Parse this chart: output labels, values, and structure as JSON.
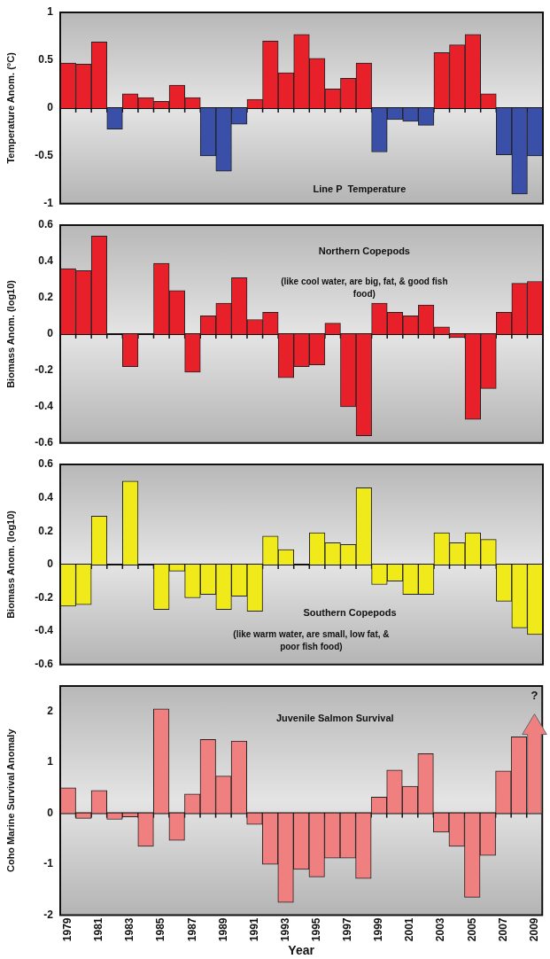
{
  "chart_data": [
    {
      "type": "bar",
      "ylabel": "Temperature Anom. (°C)",
      "annotations": [
        "Line P  Temperature"
      ],
      "categories": [
        "1979",
        null,
        "1981",
        null,
        "1983",
        null,
        "1985",
        null,
        "1987",
        null,
        "1989",
        null,
        "1991",
        null,
        "1993",
        null,
        "1995",
        null,
        "1997",
        null,
        "1999",
        null,
        "2001",
        null,
        "2003",
        null,
        "2005",
        null,
        "2007",
        null,
        "2009"
      ],
      "values": [
        0.47,
        0.46,
        0.69,
        -0.22,
        0.15,
        0.11,
        0.07,
        0.24,
        0.11,
        -0.5,
        -0.66,
        -0.17,
        0.09,
        0.7,
        0.37,
        0.77,
        0.52,
        0.2,
        0.31,
        0.47,
        -0.46,
        -0.12,
        -0.14,
        -0.18,
        0.58,
        0.66,
        0.77,
        0.15,
        -0.49,
        -0.9,
        -0.5
      ],
      "colors": [
        "#e8202a",
        "#e8202a",
        "#e8202a",
        "#3a4fa8",
        "#e8202a",
        "#e8202a",
        "#e8202a",
        "#e8202a",
        "#e8202a",
        "#3a4fa8",
        "#3a4fa8",
        "#3a4fa8",
        "#e8202a",
        "#e8202a",
        "#e8202a",
        "#e8202a",
        "#e8202a",
        "#e8202a",
        "#e8202a",
        "#e8202a",
        "#3a4fa8",
        "#3a4fa8",
        "#3a4fa8",
        "#3a4fa8",
        "#e8202a",
        "#e8202a",
        "#e8202a",
        "#e8202a",
        "#3a4fa8",
        "#3a4fa8",
        "#3a4fa8"
      ],
      "ylim": [
        -1,
        1
      ],
      "yticks": [
        -1,
        -0.5,
        0,
        0.5,
        1
      ],
      "tick_labels": "y"
    },
    {
      "type": "bar",
      "ylabel": "Biomass Anom. (log10)",
      "annotations": [
        "Northern Copepods",
        "(like cool water, are big, fat, & good fish food)"
      ],
      "categories": [
        "1979",
        null,
        "1981",
        null,
        "1983",
        null,
        "1985",
        null,
        "1987",
        null,
        "1989",
        null,
        "1991",
        null,
        "1993",
        null,
        "1995",
        null,
        "1997",
        null,
        "1999",
        null,
        "2001",
        null,
        "2003",
        null,
        "2005",
        null,
        "2007",
        null,
        "2009"
      ],
      "values": [
        0.36,
        0.35,
        0.54,
        null,
        -0.18,
        null,
        0.39,
        0.24,
        -0.21,
        0.1,
        0.17,
        0.31,
        0.08,
        0.12,
        -0.24,
        -0.18,
        -0.17,
        0.06,
        -0.4,
        -0.56,
        0.17,
        0.12,
        0.1,
        0.16,
        0.04,
        -0.02,
        -0.47,
        -0.3,
        0.12,
        0.28,
        0.29
      ],
      "color": "#e8202a",
      "ylim": [
        -0.6,
        0.6
      ],
      "yticks": [
        -0.6,
        -0.4,
        -0.2,
        0,
        0.2,
        0.4,
        0.6
      ],
      "tick_labels": "y"
    },
    {
      "type": "bar",
      "ylabel": "Biomass Anom. (log10)",
      "annotations": [
        "Southern Copepods",
        "(like warm water, are small, low fat, & poor fish food)"
      ],
      "categories": [
        "1979",
        null,
        "1981",
        null,
        "1983",
        null,
        "1985",
        null,
        "1987",
        null,
        "1989",
        null,
        "1991",
        null,
        "1993",
        null,
        "1995",
        null,
        "1997",
        null,
        "1999",
        null,
        "2001",
        null,
        "2003",
        null,
        "2005",
        null,
        "2007",
        null,
        "2009"
      ],
      "values": [
        -0.25,
        -0.24,
        0.29,
        null,
        0.5,
        null,
        -0.27,
        -0.04,
        -0.2,
        -0.18,
        -0.27,
        -0.19,
        -0.28,
        0.17,
        0.09,
        null,
        0.19,
        0.13,
        0.12,
        0.46,
        -0.12,
        -0.1,
        -0.18,
        -0.18,
        0.19,
        0.13,
        0.19,
        0.15,
        -0.22,
        -0.38,
        -0.42
      ],
      "color": "#f0ea1a",
      "ylim": [
        -0.6,
        0.6
      ],
      "yticks": [
        -0.6,
        -0.4,
        -0.2,
        0,
        0.2,
        0.4,
        0.6
      ],
      "tick_labels": "y"
    },
    {
      "type": "bar",
      "ylabel": "Coho Marine Survival Anomaly",
      "xlabel": "Year",
      "annotations": [
        "Juvenile Salmon Survival",
        "?"
      ],
      "categories": [
        "1979",
        null,
        "1981",
        null,
        "1983",
        null,
        "1985",
        null,
        "1987",
        null,
        "1989",
        null,
        "1991",
        null,
        "1993",
        null,
        "1995",
        null,
        "1997",
        null,
        "1999",
        null,
        "2001",
        null,
        "2003",
        null,
        "2005",
        null,
        "2007",
        null,
        "2009"
      ],
      "values": [
        0.5,
        -0.1,
        0.45,
        -0.12,
        -0.07,
        -0.65,
        2.05,
        -0.53,
        0.38,
        1.45,
        0.73,
        1.42,
        -0.22,
        -1.0,
        -1.75,
        -1.1,
        -1.25,
        -0.88,
        -0.88,
        -1.28,
        0.32,
        0.85,
        0.53,
        1.17,
        -0.37,
        -0.65,
        -1.65,
        -0.83,
        0.83,
        1.5,
        null
      ],
      "color": "#f08080",
      "ylim": [
        -2,
        2.5
      ],
      "yticks": [
        -2,
        -1,
        0,
        1,
        2
      ]
    }
  ]
}
